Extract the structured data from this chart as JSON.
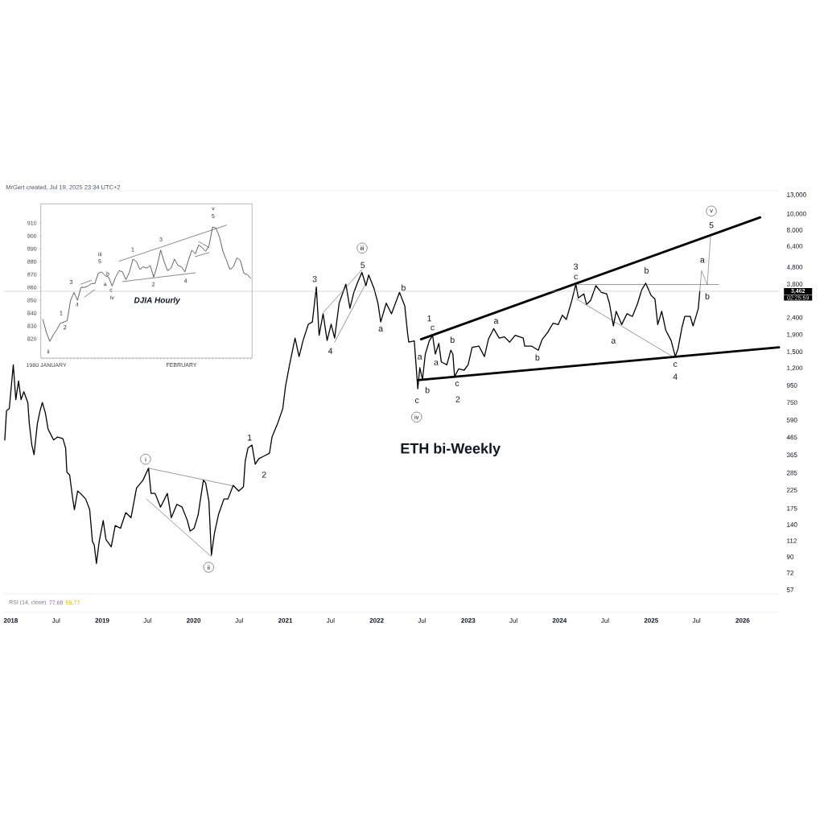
{
  "chart_data": [
    {
      "type": "line",
      "title": "ETH bi-Weekly",
      "log": "y",
      "x": [
        "2017-12-08",
        "2017-12-15",
        "2017-12-26",
        "2018-01-11",
        "2018-01-21",
        "2018-02-01",
        "2018-02-11",
        "2018-02-22",
        "2018-03-10",
        "2018-03-16",
        "2018-03-26",
        "2018-04-04",
        "2018-04-17",
        "2018-04-28",
        "2018-05-07",
        "2018-05-19",
        "2018-05-30",
        "2018-06-10",
        "2018-06-21",
        "2018-07-07",
        "2018-07-28",
        "2018-08-08",
        "2018-08-13",
        "2018-08-24",
        "2018-09-04",
        "2018-09-12",
        "2018-09-25",
        "2018-10-06",
        "2018-10-27",
        "2018-11-12",
        "2018-11-23",
        "2018-11-30",
        "2018-12-09",
        "2018-12-20",
        "2019-01-05",
        "2019-01-16",
        "2019-02-06",
        "2019-02-22",
        "2019-03-15",
        "2019-04-05",
        "2019-04-26",
        "2019-05-18",
        "2019-06-13",
        "2019-07-05",
        "2019-07-15",
        "2019-07-31",
        "2019-08-22",
        "2019-09-18",
        "2019-10-04",
        "2019-10-26",
        "2019-11-16",
        "2019-12-07",
        "2019-12-18",
        "2020-01-03",
        "2020-01-19",
        "2020-02-09",
        "2020-02-18",
        "2020-03-02",
        "2020-03-12",
        "2020-03-24",
        "2020-04-09",
        "2020-05-01",
        "2020-05-17",
        "2020-06-07",
        "2020-06-29",
        "2020-07-18",
        "2020-07-25",
        "2020-08-05",
        "2020-08-21",
        "2020-09-03",
        "2020-09-17",
        "2020-10-08",
        "2020-10-30",
        "2020-11-09",
        "2020-12-01",
        "2020-12-22",
        "2021-01-02",
        "2021-01-18",
        "2021-02-09",
        "2021-02-25",
        "2021-03-13",
        "2021-04-03",
        "2021-04-19",
        "2021-05-05",
        "2021-05-16",
        "2021-06-01",
        "2021-06-17",
        "2021-07-03",
        "2021-07-17",
        "2021-08-04",
        "2021-08-31",
        "2021-09-16",
        "2021-10-02",
        "2021-10-18",
        "2021-11-03",
        "2021-11-19",
        "2021-11-30",
        "2021-12-21",
        "2022-01-06",
        "2022-01-17",
        "2022-02-08",
        "2022-03-01",
        "2022-04-02",
        "2022-04-23",
        "2022-05-04",
        "2022-05-09",
        "2022-05-31",
        "2022-06-14",
        "2022-06-22",
        "2022-07-03",
        "2022-07-14",
        "2022-07-30",
        "2022-08-12",
        "2022-08-23",
        "2022-09-06",
        "2022-09-16",
        "2022-10-08",
        "2022-10-24",
        "2022-11-01",
        "2022-11-08",
        "2022-11-24",
        "2022-12-16",
        "2023-01-01",
        "2023-01-17",
        "2023-02-13",
        "2023-03-07",
        "2023-03-23",
        "2023-04-13",
        "2023-05-05",
        "2023-05-26",
        "2023-06-16",
        "2023-07-08",
        "2023-08-09",
        "2023-08-15",
        "2023-09-11",
        "2023-10-08",
        "2023-10-24",
        "2023-11-14",
        "2023-12-06",
        "2023-12-27",
        "2024-01-12",
        "2024-01-28",
        "2024-02-19",
        "2024-03-06",
        "2024-03-16",
        "2024-04-07",
        "2024-04-18",
        "2024-05-04",
        "2024-05-25",
        "2024-06-16",
        "2024-07-07",
        "2024-07-18",
        "2024-08-03",
        "2024-08-14",
        "2024-09-05",
        "2024-09-26",
        "2024-10-18",
        "2024-11-08",
        "2024-11-24",
        "2024-12-10",
        "2024-12-31",
        "2025-01-16",
        "2025-01-27",
        "2025-02-12",
        "2025-02-28",
        "2025-03-22",
        "2025-04-07",
        "2025-04-18",
        "2025-05-04",
        "2025-05-15",
        "2025-06-06",
        "2025-06-17",
        "2025-06-27",
        "2025-07-08",
        "2025-07-14"
      ],
      "series": [
        {
          "color": "#000000",
          "values": [
            448,
            670,
            690,
            1260,
            780,
            1010,
            780,
            870,
            750,
            560,
            418,
            366,
            560,
            670,
            750,
            650,
            520,
            482,
            448,
            467,
            456,
            401,
            288,
            277,
            206,
            172,
            222,
            215,
            199,
            172,
            111,
            106,
            82,
            111,
            148,
            114,
            103,
            138,
            133,
            165,
            154,
            231,
            258,
            304,
            215,
            215,
            178,
            215,
            154,
            185,
            178,
            148,
            128,
            133,
            160,
            258,
            248,
            193,
            92,
            124,
            160,
            199,
            199,
            240,
            222,
            235,
            335,
            401,
            418,
            321,
            346,
            359,
            374,
            467,
            560,
            690,
            940,
            1260,
            1820,
            1410,
            1760,
            2200,
            2270,
            3670,
            1890,
            2540,
            1760,
            2200,
            1820,
            2940,
            3820,
            2740,
            3420,
            3950,
            4490,
            3740,
            4330,
            3610,
            2940,
            2270,
            2940,
            2540,
            3410,
            2830,
            1960,
            1720,
            1750,
            906,
            1210,
            1030,
            1460,
            1750,
            1890,
            1460,
            1690,
            1310,
            1260,
            1540,
            1460,
            1070,
            1190,
            1170,
            1260,
            1600,
            1630,
            1410,
            1790,
            2070,
            1820,
            1850,
            1720,
            1890,
            1820,
            1630,
            1630,
            1540,
            1790,
            1960,
            2230,
            2190,
            2490,
            2350,
            3050,
            3810,
            3160,
            3340,
            2890,
            3050,
            3740,
            3410,
            3340,
            2940,
            2150,
            2630,
            2190,
            2540,
            2450,
            2940,
            3530,
            3870,
            3280,
            3110,
            2190,
            2630,
            2030,
            1750,
            1410,
            1570,
            2110,
            2450,
            2450,
            2150,
            2400,
            2730,
            3462
          ]
        },
        {
          "color": "#000000",
          "x": [
            "2022-06-27",
            "2026-03-12"
          ],
          "values": [
            1790,
            9570
          ]
        },
        {
          "color": "#000000",
          "x": [
            "2022-06-14",
            "2026-05-26"
          ],
          "values": [
            1020,
            1600
          ]
        },
        {
          "color": "#444444",
          "x": [
            "2024-03-06",
            "2025-09-28"
          ],
          "values": [
            3800,
            3800
          ]
        },
        {
          "color": "#444444",
          "x": [
            "2024-03-09",
            "2025-03-27"
          ],
          "values": [
            3110,
            1410
          ]
        },
        {
          "color": "#444444",
          "x": [
            "2019-07-05",
            "2020-06-02"
          ],
          "values": [
            304,
            239
          ]
        },
        {
          "color": "#444444",
          "x": [
            "2019-06-27",
            "2020-03-12"
          ],
          "values": [
            199,
            90
          ]
        },
        {
          "color": "#444444",
          "x": [
            "2021-06-01",
            "2021-11-03"
          ],
          "values": [
            2580,
            4660
          ]
        },
        {
          "color": "#444444",
          "x": [
            "2021-07-17",
            "2021-11-25"
          ],
          "values": [
            1720,
            4020
          ]
        },
        {
          "color": "#555555",
          "x": [
            "2025-07-14",
            "2025-07-21",
            "2025-08-13",
            "2025-08-26"
          ],
          "values": [
            3462,
            4580,
            3780,
            7440
          ]
        }
      ],
      "xlim": [
        "2017-12-05",
        "2026-05-26"
      ],
      "ylim": [
        54,
        13500
      ],
      "xticks": [
        {
          "value": "2018-01-01",
          "label": "2018"
        },
        {
          "value": "2018-07-01",
          "label": "Jul"
        },
        {
          "value": "2019-01-01",
          "label": "2019"
        },
        {
          "value": "2019-07-01",
          "label": "Jul"
        },
        {
          "value": "2020-01-01",
          "label": "2020"
        },
        {
          "value": "2020-07-01",
          "label": "Jul"
        },
        {
          "value": "2021-01-01",
          "label": "2021"
        },
        {
          "value": "2021-07-01",
          "label": "Jul"
        },
        {
          "value": "2022-01-01",
          "label": "2022"
        },
        {
          "value": "2022-07-01",
          "label": "Jul"
        },
        {
          "value": "2023-01-01",
          "label": "2023"
        },
        {
          "value": "2023-07-01",
          "label": "Jul"
        },
        {
          "value": "2024-01-01",
          "label": "2024"
        },
        {
          "value": "2024-07-01",
          "label": "Jul"
        },
        {
          "value": "2025-01-01",
          "label": "2025"
        },
        {
          "value": "2025-07-01",
          "label": "Jul"
        },
        {
          "value": "2026-01-01",
          "label": "2026"
        }
      ],
      "yticks": [
        57,
        72,
        90,
        112,
        140,
        175,
        225,
        285,
        365,
        465,
        590,
        750,
        950,
        {
          "value": 1200,
          "label": "1,200"
        },
        {
          "value": 1500,
          "label": "1,500"
        },
        {
          "value": 1900,
          "label": "1,900"
        },
        {
          "value": 2400,
          "label": "2,400"
        },
        {
          "value": 3800,
          "label": "3,800"
        },
        {
          "value": 4800,
          "label": "4,800"
        },
        {
          "value": 6400,
          "label": "6,400"
        },
        {
          "value": 8000,
          "label": "8,000"
        },
        {
          "value": 10000,
          "label": "10,000"
        },
        {
          "value": 13000,
          "label": "13,000"
        }
      ],
      "ref_lines": [
        {
          "axis": "y",
          "value": 3462,
          "label": "3,462",
          "color": "#b2b5be"
        }
      ],
      "annotations": [
        "MrGert created, Jul 19, 2025 23:34 UTC+2",
        "RSI (14, close)",
        "77.68",
        "59.77",
        "02:25:59",
        "i",
        "ii",
        "iii",
        "iv",
        "v",
        {
          "text": "1",
          "x": "2020-08-05",
          "y": 401
        },
        {
          "text": "2",
          "x": "2020-09-03",
          "y": 321
        },
        {
          "text": "3",
          "x": "2021-05-05",
          "y": 3670
        },
        {
          "text": "4",
          "x": "2021-06-17",
          "y": 1760
        },
        {
          "text": "5",
          "x": "2021-11-03",
          "y": 4490
        },
        {
          "text": "a",
          "x": "2022-01-17",
          "y": 2270
        },
        {
          "text": "b",
          "x": "2022-04-02",
          "y": 3410
        },
        {
          "text": "c",
          "x": "2022-06-14",
          "y": 906
        },
        {
          "text": "a",
          "x": "2022-06-22",
          "y": 1210
        },
        {
          "text": "b",
          "x": "2022-07-03",
          "y": 1030
        },
        {
          "text": "1",
          "x": "2022-08-12",
          "y": 1890
        },
        {
          "text": "c",
          "x": "2022-08-12",
          "y": 1890
        },
        {
          "text": "a",
          "x": "2022-08-23",
          "y": 1460
        },
        {
          "text": "b",
          "x": "2022-10-24",
          "y": 1540
        },
        {
          "text": "c",
          "x": "2022-11-08",
          "y": 1070
        },
        {
          "text": "2",
          "x": "2022-11-08",
          "y": 1070
        },
        {
          "text": "a",
          "x": "2023-04-13",
          "y": 2070
        },
        {
          "text": "b",
          "x": "2023-10-08",
          "y": 1540
        },
        {
          "text": "3",
          "x": "2024-03-06",
          "y": 3810
        },
        {
          "text": "c",
          "x": "2024-03-06",
          "y": 3810
        },
        {
          "text": "a",
          "x": "2024-08-03",
          "y": 2150
        },
        {
          "text": "b",
          "x": "2024-12-10",
          "y": 3870
        },
        {
          "text": "c",
          "x": "2025-04-07",
          "y": 1410
        },
        {
          "text": "4",
          "x": "2025-04-07",
          "y": 1410
        },
        {
          "text": "a",
          "x": "2025-07-21",
          "y": 4580
        },
        {
          "text": "b",
          "x": "2025-08-13",
          "y": 3780
        },
        {
          "text": "5",
          "x": "2025-08-26",
          "y": 7440
        }
      ]
    },
    {
      "type": "line",
      "title": "DJIA Hourly",
      "categories": [
        null,
        "1980 JANUARY",
        null,
        null,
        null,
        null,
        null,
        null,
        null,
        null,
        null,
        null,
        null,
        null,
        null,
        null,
        null,
        null,
        null,
        null,
        null,
        null,
        null,
        null,
        null,
        null,
        null,
        null,
        null,
        null,
        null,
        null,
        null,
        null,
        null,
        null,
        null,
        null,
        null,
        null,
        "FEBRUARY",
        null,
        null,
        null,
        null,
        null,
        null,
        null,
        null,
        null,
        null,
        null,
        null,
        null,
        null,
        null,
        null,
        null,
        null,
        null,
        null
      ],
      "series": [
        {
          "color": "#3a3a3a",
          "values": [
            835,
            825,
            818,
            823,
            827,
            832,
            833,
            834,
            850,
            856,
            850,
            860,
            860,
            861,
            863,
            863,
            871,
            872,
            869,
            868,
            861,
            868,
            873,
            872,
            866,
            872,
            882,
            880,
            874,
            876,
            875,
            877,
            868,
            877,
            889,
            880,
            873,
            875,
            882,
            877,
            876,
            872,
            881,
            889,
            886,
            893,
            891,
            888,
            893,
            907,
            906,
            899,
            888,
            881,
            874,
            876,
            883,
            881,
            871,
            870,
            867
          ]
        },
        {
          "color": "#555555",
          "values": [
            null,
            null,
            null,
            null,
            null,
            null,
            null,
            null,
            null,
            null,
            null,
            null,
            null,
            null,
            null,
            null,
            null,
            null,
            null,
            null,
            null,
            null,
            880.4,
            881.3,
            882.2,
            883.1,
            884.0,
            884.9,
            885.8,
            886.7,
            887.6,
            888.5,
            889.4,
            890.3,
            891.2,
            892.1,
            893.0,
            893.9,
            894.8,
            895.8,
            896.7,
            897.6,
            898.5,
            899.4,
            900.3,
            901.2,
            902.1,
            903.0,
            903.9,
            904.8,
            905.7,
            906.6,
            907.5,
            908.4,
            null,
            null,
            null,
            null,
            null,
            null,
            null
          ]
        },
        {
          "color": "#555555",
          "values": [
            null,
            null,
            null,
            null,
            null,
            null,
            null,
            null,
            null,
            null,
            null,
            null,
            null,
            null,
            null,
            null,
            null,
            null,
            null,
            null,
            null,
            null,
            null,
            864.5,
            864.8,
            865.1,
            865.5,
            865.8,
            866.1,
            866.4,
            866.8,
            867.1,
            867.4,
            867.7,
            868.1,
            868.4,
            868.7,
            869.0,
            869.4,
            869.7,
            870.0,
            870.3,
            870.7,
            871.0,
            871.3,
            null,
            null,
            null,
            null,
            null,
            null,
            null,
            null,
            null,
            null,
            null,
            null,
            null,
            null,
            null,
            null
          ]
        },
        {
          "color": "#555555",
          "values": [
            null,
            null,
            null,
            null,
            null,
            null,
            null,
            null,
            null,
            null,
            null,
            862.5,
            863.5,
            864.5,
            865.4,
            null,
            null,
            null,
            null,
            null,
            null,
            null,
            null,
            null,
            null,
            null,
            null,
            null,
            null,
            null,
            null,
            null,
            null,
            null,
            null,
            null,
            null,
            null,
            null,
            null,
            null,
            null,
            null,
            null,
            null,
            null,
            null,
            null,
            null,
            null,
            null,
            null,
            null,
            null,
            null,
            null,
            null,
            null,
            null,
            null,
            null
          ]
        },
        {
          "color": "#555555",
          "values": [
            null,
            null,
            null,
            null,
            null,
            null,
            null,
            null,
            null,
            null,
            null,
            null,
            852.4,
            854.4,
            856.3,
            858.2,
            null,
            null,
            null,
            null,
            null,
            null,
            null,
            null,
            null,
            null,
            null,
            null,
            null,
            null,
            null,
            null,
            null,
            null,
            null,
            null,
            null,
            null,
            null,
            null,
            null,
            null,
            null,
            null,
            null,
            null,
            null,
            null,
            null,
            null,
            null,
            null,
            null,
            null,
            null,
            null,
            null,
            null,
            null,
            null,
            null
          ]
        },
        {
          "color": "#555555",
          "values": [
            null,
            null,
            null,
            null,
            null,
            null,
            null,
            null,
            null,
            null,
            null,
            null,
            null,
            null,
            null,
            null,
            null,
            null,
            null,
            null,
            null,
            null,
            null,
            null,
            null,
            null,
            null,
            null,
            null,
            null,
            null,
            null,
            null,
            null,
            null,
            null,
            null,
            null,
            null,
            null,
            null,
            null,
            null,
            null,
            null,
            895.6,
            894.1,
            892.5,
            890.9,
            null,
            null,
            null,
            null,
            null,
            null,
            null,
            null,
            null,
            null,
            null,
            null
          ]
        },
        {
          "color": "#555555",
          "values": [
            null,
            null,
            null,
            null,
            null,
            null,
            null,
            null,
            null,
            null,
            null,
            null,
            null,
            null,
            null,
            null,
            null,
            null,
            null,
            null,
            null,
            null,
            null,
            null,
            null,
            null,
            null,
            null,
            null,
            null,
            null,
            null,
            null,
            null,
            null,
            null,
            null,
            null,
            null,
            null,
            null,
            null,
            null,
            null,
            884.0,
            884.7,
            885.5,
            886.3,
            887.1,
            null,
            null,
            null,
            null,
            null,
            null,
            null,
            null,
            null,
            null,
            null,
            null
          ]
        }
      ],
      "ylim": [
        805,
        925
      ],
      "yticks": [
        820,
        830,
        840,
        850,
        860,
        870,
        880,
        890,
        900,
        910
      ],
      "annotations": [
        "ii",
        "1",
        "2",
        "3",
        "4",
        "iii",
        "5",
        "a",
        "b",
        "c",
        "iv",
        "1",
        "2",
        "3",
        "4",
        "v",
        "5"
      ]
    }
  ]
}
